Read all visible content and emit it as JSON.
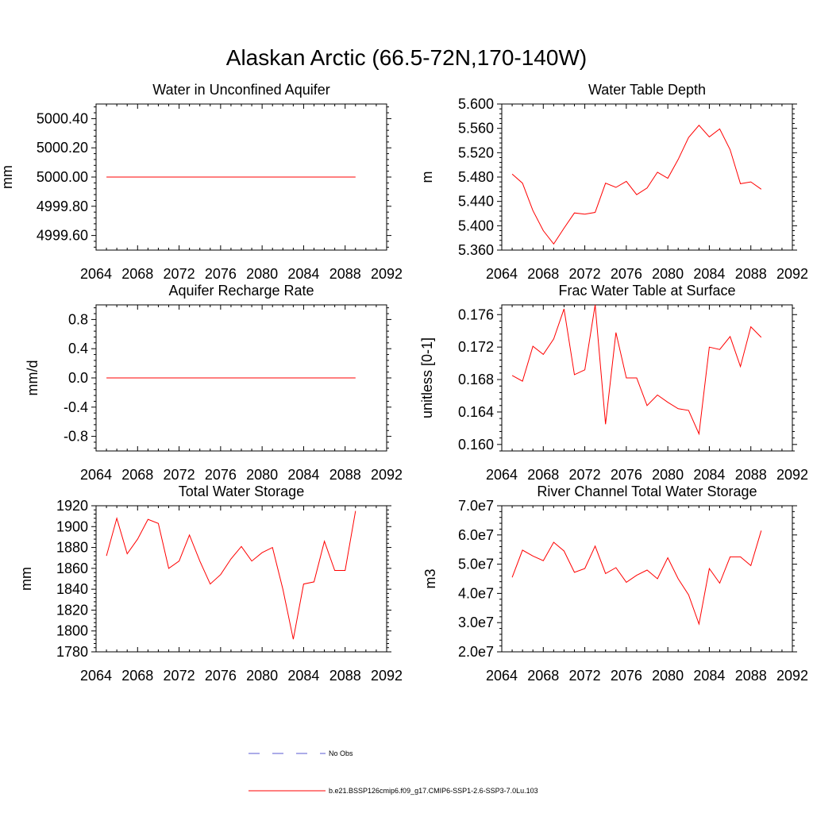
{
  "figure_title": "Alaskan Arctic (66.5-72N,170-140W)",
  "colors": {
    "series": "#ff0000",
    "obs": "#5a5ad2",
    "axis": "#000000"
  },
  "legend": {
    "obs_label": "No Obs",
    "model_label": "b.e21.BSSP126cmip6.f09_g17.CMIP6-SSP1-2.6-SSP3-7.0Lu.103"
  },
  "chart_data": [
    {
      "type": "line",
      "title": "Water in Unconfined Aquifer",
      "ylabel": "mm",
      "xlim": [
        2064,
        2092
      ],
      "ylim": [
        4999.5,
        5000.5
      ],
      "xticks": [
        2064,
        2068,
        2072,
        2076,
        2080,
        2084,
        2088,
        2092
      ],
      "yticks": [
        4999.6,
        4999.8,
        5000.0,
        5000.2,
        5000.4
      ],
      "ytick_labels": [
        "4999.60",
        "4999.80",
        "5000.00",
        "5000.20",
        "5000.40"
      ],
      "x": [
        2065,
        2066,
        2067,
        2068,
        2069,
        2070,
        2071,
        2072,
        2073,
        2074,
        2075,
        2076,
        2077,
        2078,
        2079,
        2080,
        2081,
        2082,
        2083,
        2084,
        2085,
        2086,
        2087,
        2088,
        2089
      ],
      "series": [
        {
          "values": [
            5000.0,
            5000.0,
            5000.0,
            5000.0,
            5000.0,
            5000.0,
            5000.0,
            5000.0,
            5000.0,
            5000.0,
            5000.0,
            5000.0,
            5000.0,
            5000.0,
            5000.0,
            5000.0,
            5000.0,
            5000.0,
            5000.0,
            5000.0,
            5000.0,
            5000.0,
            5000.0,
            5000.0,
            5000.0
          ]
        }
      ]
    },
    {
      "type": "line",
      "title": "Water Table Depth",
      "ylabel": "m",
      "xlim": [
        2064,
        2092
      ],
      "ylim": [
        5.36,
        5.6
      ],
      "xticks": [
        2064,
        2068,
        2072,
        2076,
        2080,
        2084,
        2088,
        2092
      ],
      "yticks": [
        5.36,
        5.4,
        5.44,
        5.48,
        5.52,
        5.56,
        5.6
      ],
      "ytick_labels": [
        "5.360",
        "5.400",
        "5.440",
        "5.480",
        "5.520",
        "5.560",
        "5.600"
      ],
      "x": [
        2065,
        2066,
        2067,
        2068,
        2069,
        2070,
        2071,
        2072,
        2073,
        2074,
        2075,
        2076,
        2077,
        2078,
        2079,
        2080,
        2081,
        2082,
        2083,
        2084,
        2085,
        2086,
        2087,
        2088,
        2089
      ],
      "series": [
        {
          "values": [
            5.485,
            5.47,
            5.425,
            5.392,
            5.37,
            5.396,
            5.421,
            5.419,
            5.422,
            5.47,
            5.463,
            5.473,
            5.451,
            5.462,
            5.488,
            5.478,
            5.509,
            5.545,
            5.565,
            5.546,
            5.559,
            5.525,
            5.469,
            5.472,
            5.46
          ]
        }
      ]
    },
    {
      "type": "line",
      "title": "Aquifer Recharge Rate",
      "ylabel": "mm/d",
      "xlim": [
        2064,
        2092
      ],
      "ylim": [
        -1.0,
        1.0
      ],
      "xticks": [
        2064,
        2068,
        2072,
        2076,
        2080,
        2084,
        2088,
        2092
      ],
      "yticks": [
        -0.8,
        -0.4,
        0.0,
        0.4,
        0.8
      ],
      "ytick_labels": [
        "-0.8",
        "-0.4",
        "0.0",
        "0.4",
        "0.8"
      ],
      "x": [
        2065,
        2066,
        2067,
        2068,
        2069,
        2070,
        2071,
        2072,
        2073,
        2074,
        2075,
        2076,
        2077,
        2078,
        2079,
        2080,
        2081,
        2082,
        2083,
        2084,
        2085,
        2086,
        2087,
        2088,
        2089
      ],
      "series": [
        {
          "values": [
            0,
            0,
            0,
            0,
            0,
            0,
            0,
            0,
            0,
            0,
            0,
            0,
            0,
            0,
            0,
            0,
            0,
            0,
            0,
            0,
            0,
            0,
            0,
            0,
            0
          ]
        }
      ]
    },
    {
      "type": "line",
      "title": "Frac Water Table at Surface",
      "ylabel": "unitless [0-1]",
      "xlim": [
        2064,
        2092
      ],
      "ylim": [
        0.1592,
        0.1772
      ],
      "xticks": [
        2064,
        2068,
        2072,
        2076,
        2080,
        2084,
        2088,
        2092
      ],
      "yticks": [
        0.16,
        0.164,
        0.168,
        0.172,
        0.176
      ],
      "ytick_labels": [
        "0.160",
        "0.164",
        "0.168",
        "0.172",
        "0.176"
      ],
      "x": [
        2065,
        2066,
        2067,
        2068,
        2069,
        2070,
        2071,
        2072,
        2073,
        2074,
        2075,
        2076,
        2077,
        2078,
        2079,
        2080,
        2081,
        2082,
        2083,
        2084,
        2085,
        2086,
        2087,
        2088,
        2089
      ],
      "series": [
        {
          "values": [
            0.1685,
            0.1678,
            0.1721,
            0.1711,
            0.173,
            0.1767,
            0.1686,
            0.1692,
            0.1772,
            0.1625,
            0.1738,
            0.1682,
            0.1682,
            0.1648,
            0.1661,
            0.1652,
            0.1644,
            0.1642,
            0.1613,
            0.172,
            0.1717,
            0.1733,
            0.1696,
            0.1745,
            0.1732
          ]
        }
      ]
    },
    {
      "type": "line",
      "title": "Total Water Storage",
      "ylabel": "mm",
      "xlim": [
        2064,
        2092
      ],
      "ylim": [
        1780,
        1920
      ],
      "xticks": [
        2064,
        2068,
        2072,
        2076,
        2080,
        2084,
        2088,
        2092
      ],
      "yticks": [
        1780,
        1800,
        1820,
        1840,
        1860,
        1880,
        1900,
        1920
      ],
      "ytick_labels": [
        "1780",
        "1800",
        "1820",
        "1840",
        "1860",
        "1880",
        "1900",
        "1920"
      ],
      "x": [
        2065,
        2066,
        2067,
        2068,
        2069,
        2070,
        2071,
        2072,
        2073,
        2074,
        2075,
        2076,
        2077,
        2078,
        2079,
        2080,
        2081,
        2082,
        2083,
        2084,
        2085,
        2086,
        2087,
        2088,
        2089
      ],
      "series": [
        {
          "values": [
            1872,
            1908,
            1874,
            1888,
            1907,
            1903,
            1860,
            1867,
            1892,
            1867,
            1845,
            1854,
            1869,
            1881,
            1867,
            1875,
            1880,
            1840,
            1792,
            1845,
            1847,
            1886,
            1858,
            1858,
            1915
          ]
        }
      ]
    },
    {
      "type": "line",
      "title": "River Channel Total Water Storage",
      "ylabel": "m3",
      "xlim": [
        2064,
        2092
      ],
      "ylim": [
        20000000.0,
        70000000.0
      ],
      "xticks": [
        2064,
        2068,
        2072,
        2076,
        2080,
        2084,
        2088,
        2092
      ],
      "yticks": [
        20000000.0,
        30000000.0,
        40000000.0,
        50000000.0,
        60000000.0,
        70000000.0
      ],
      "ytick_labels": [
        "2.0e7",
        "3.0e7",
        "4.0e7",
        "5.0e7",
        "6.0e7",
        "7.0e7"
      ],
      "x": [
        2065,
        2066,
        2067,
        2068,
        2069,
        2070,
        2071,
        2072,
        2073,
        2074,
        2075,
        2076,
        2077,
        2078,
        2079,
        2080,
        2081,
        2082,
        2083,
        2084,
        2085,
        2086,
        2087,
        2088,
        2089
      ],
      "series": [
        {
          "values": [
            45500000.0,
            54800000.0,
            52800000.0,
            51200000.0,
            57500000.0,
            54500000.0,
            47200000.0,
            48500000.0,
            56200000.0,
            46800000.0,
            48800000.0,
            43800000.0,
            46200000.0,
            48000000.0,
            45000000.0,
            52200000.0,
            45000000.0,
            39500000.0,
            29500000.0,
            48500000.0,
            43500000.0,
            52500000.0,
            52500000.0,
            49500000.0,
            61500000.0
          ]
        }
      ]
    }
  ]
}
